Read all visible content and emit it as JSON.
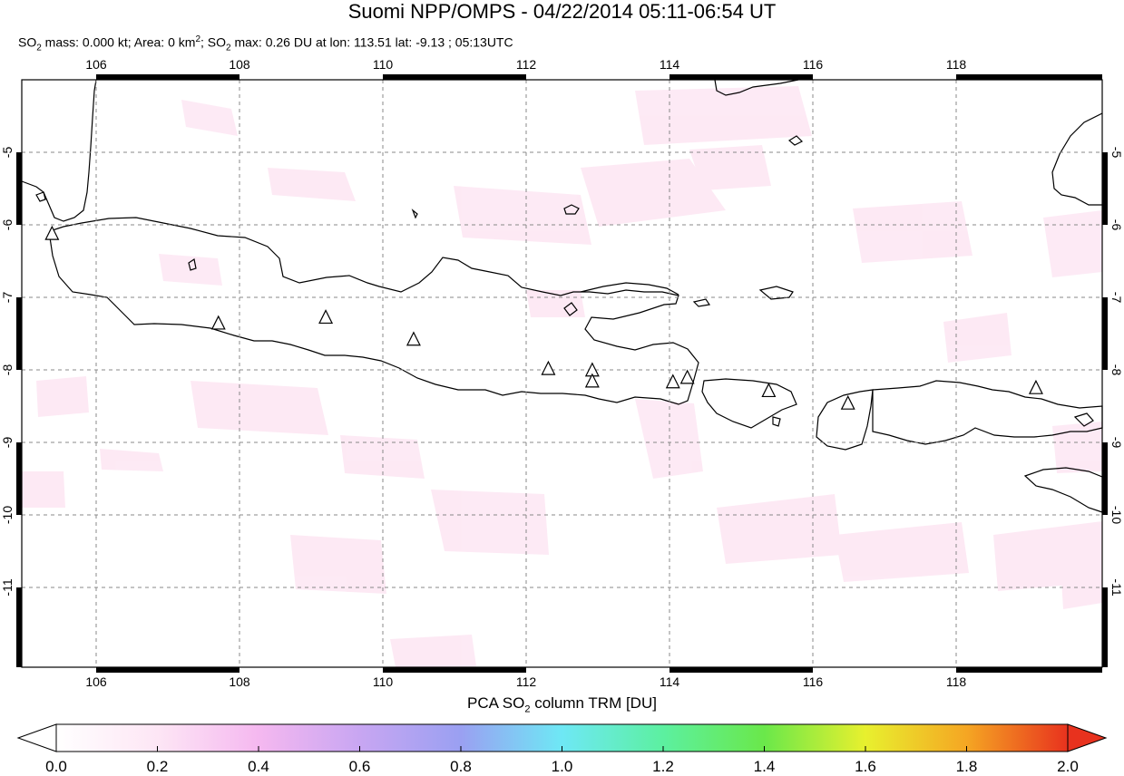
{
  "header": {
    "title": "Suomi NPP/OMPS - 04/22/2014 05:11-06:54 UT",
    "stats_prefix": "SO",
    "stats_mass": " mass: 0.000 kt; Area: 0 km",
    "stats_area_exp": "2",
    "stats_so2max_prefix": "; SO",
    "stats_rest": " max: 0.26 DU at lon: 113.51 lat: -9.13 ; 05:13UTC",
    "sub2": "2"
  },
  "map": {
    "lon_range": [
      105.0,
      120.0
    ],
    "lat_range": [
      -12.0,
      -4.0
    ],
    "top_lon_ticks": [
      "106",
      "108",
      "110",
      "112",
      "114",
      "116",
      "118"
    ],
    "bottom_lon_ticks": [
      "106",
      "108",
      "110",
      "112",
      "114",
      "116",
      "118"
    ],
    "lat_ticks": [
      "-5",
      "-6",
      "-7",
      "-8",
      "-9",
      "-10",
      "-11"
    ],
    "grid": true,
    "volcanoes": [
      {
        "lon": 105.42,
        "lat": -6.1
      },
      {
        "lon": 107.73,
        "lat": -7.32
      },
      {
        "lon": 109.22,
        "lat": -7.24
      },
      {
        "lon": 110.44,
        "lat": -7.54
      },
      {
        "lon": 112.31,
        "lat": -7.94
      },
      {
        "lon": 112.92,
        "lat": -7.96
      },
      {
        "lon": 112.92,
        "lat": -8.11
      },
      {
        "lon": 114.04,
        "lat": -8.12
      },
      {
        "lon": 114.24,
        "lat": -8.06
      },
      {
        "lon": 115.37,
        "lat": -8.24
      },
      {
        "lon": 116.47,
        "lat": -8.41
      },
      {
        "lon": 119.08,
        "lat": -8.2
      }
    ]
  },
  "colorbar": {
    "title_prefix": "PCA SO",
    "title_sub": "2",
    "title_suffix": " column TRM [DU]",
    "min": 0.0,
    "max": 2.0,
    "labels": [
      "0.0",
      "0.2",
      "0.4",
      "0.6",
      "0.8",
      "1.0",
      "1.2",
      "1.4",
      "1.6",
      "1.8",
      "2.0"
    ],
    "colors": [
      "#ffffff",
      "#fcd6f4",
      "#e6a8f5",
      "#b29cf0",
      "#8aa6f5",
      "#6ee8f5",
      "#5cf0a0",
      "#6ae84a",
      "#e8f02e",
      "#f5a623",
      "#e8321e"
    ]
  }
}
